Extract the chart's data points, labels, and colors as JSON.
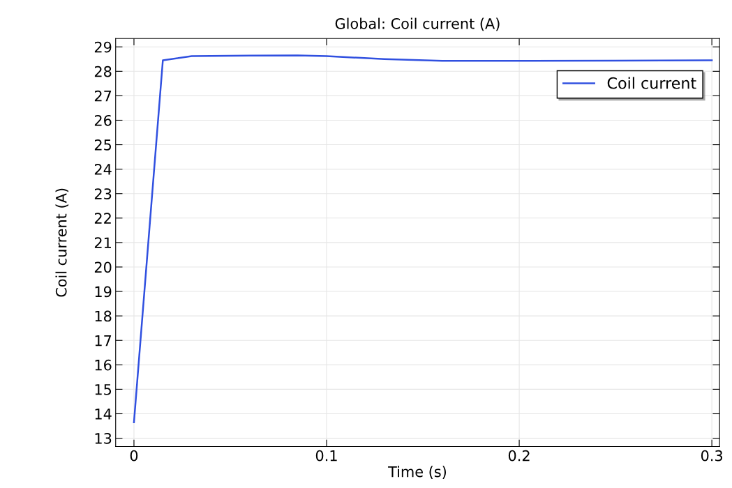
{
  "chart_data": {
    "type": "line",
    "title": "Global: Coil current (A)",
    "xlabel": "Time (s)",
    "ylabel": "Coil current (A)",
    "x": [
      0,
      0.015,
      0.03,
      0.06,
      0.085,
      0.1,
      0.13,
      0.16,
      0.2,
      0.25,
      0.3
    ],
    "series": [
      {
        "name": "Coil current",
        "color": "#3050e0",
        "values": [
          13.65,
          28.45,
          28.62,
          28.64,
          28.65,
          28.62,
          28.5,
          28.43,
          28.43,
          28.44,
          28.45
        ]
      }
    ],
    "xlim": [
      -0.0095,
      0.304
    ],
    "ylim": [
      12.66,
      29.34
    ],
    "xticks": [
      0,
      0.1,
      0.2,
      0.3
    ],
    "yticks": [
      13,
      14,
      15,
      16,
      17,
      18,
      19,
      20,
      21,
      22,
      23,
      24,
      25,
      26,
      27,
      28,
      29
    ],
    "grid": true,
    "legend": "top right",
    "line_style": "solid",
    "marker": "none"
  }
}
